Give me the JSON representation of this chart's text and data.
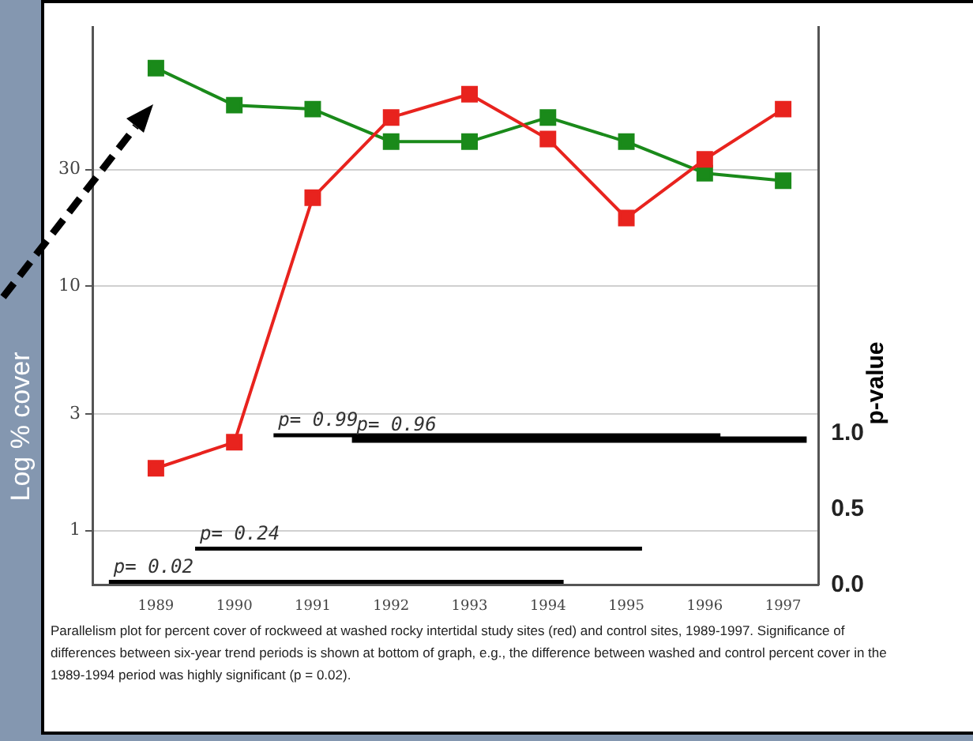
{
  "chart_data": {
    "type": "line",
    "ylabel": "Log % cover",
    "y2label": "p-value",
    "x": [
      1989,
      1990,
      1991,
      1992,
      1993,
      1994,
      1995,
      1996,
      1997
    ],
    "series": [
      {
        "color": "#e8231e",
        "values": [
          1.8,
          2.3,
          23,
          49,
          61,
          40,
          19,
          33,
          53
        ]
      },
      {
        "color": "#1a8a1a",
        "values": [
          78,
          55,
          53,
          39,
          39,
          49,
          39,
          29,
          27
        ]
      },
      {
        "type": "line",
        "axis": "y2",
        "x": [
          1990.5,
          1996.2
        ],
        "values": [
          0.99,
          0.99
        ],
        "color": "#000000",
        "marker": "none",
        "value_labels": [
          "p= 0.99",
          null
        ]
      },
      {
        "type": "line",
        "axis": "y2",
        "x": [
          1991.5,
          1997.3
        ],
        "values": [
          0.96,
          0.96
        ],
        "color": "#000000",
        "marker": "none",
        "value_labels": [
          "p= 0.96",
          null
        ]
      },
      {
        "type": "line",
        "axis": "y2",
        "x": [
          1989.5,
          1995.2
        ],
        "values": [
          0.24,
          0.24
        ],
        "color": "#000000",
        "marker": "none",
        "value_labels": [
          "p= 0.24",
          null
        ]
      },
      {
        "type": "line",
        "axis": "y2",
        "x": [
          1988.4,
          1994.2
        ],
        "values": [
          0.02,
          0.02
        ],
        "color": "#000000",
        "marker": "none",
        "value_labels": [
          "p= 0.02",
          null
        ]
      }
    ],
    "xlim": [
      1988.2,
      1997.45
    ],
    "xticks": [
      1989,
      1990,
      1991,
      1992,
      1993,
      1994,
      1995,
      1996,
      1997
    ],
    "log": "y",
    "ylim": [
      0.63,
      115
    ],
    "yticks": [
      1,
      3,
      10,
      30
    ],
    "y2lim": [
      0,
      3.69
    ],
    "y2ticks": [
      {
        "value": 0,
        "label": "0.0"
      },
      {
        "value": 0.5,
        "label": "0.5"
      },
      {
        "value": 1,
        "label": "1.0"
      }
    ],
    "grid": "y",
    "marker": "square",
    "annotations": [
      "Parallelism plot for percent cover of rockweed at washed rocky intertidal study sites (red) and control sites, 1989-1997.  Significance of differences between six-year trend periods is shown at bottom of graph, e.g., the difference between washed and control percent cover in the 1989-1994 period was highly significant (p = 0.02)."
    ]
  }
}
